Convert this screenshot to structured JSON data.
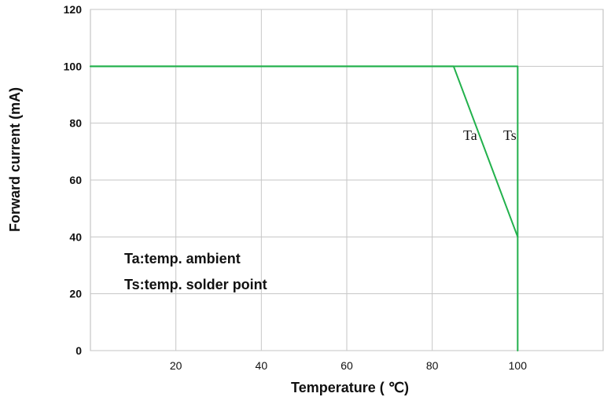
{
  "chart_data": {
    "type": "line",
    "title": "",
    "xlabel": "Temperature ( ℃)",
    "ylabel": "Forward current (mA)",
    "xlim": [
      0,
      120
    ],
    "ylim": [
      0,
      120
    ],
    "x_ticks": [
      20,
      40,
      60,
      80,
      100
    ],
    "y_ticks": [
      0,
      20,
      40,
      60,
      80,
      100,
      120
    ],
    "grid": true,
    "series": [
      {
        "name": "Ta",
        "color": "#22b14c",
        "points": [
          [
            0,
            100
          ],
          [
            85,
            100
          ],
          [
            100,
            40
          ]
        ]
      },
      {
        "name": "Ts",
        "color": "#22b14c",
        "points": [
          [
            0,
            100
          ],
          [
            100,
            100
          ],
          [
            100,
            0
          ]
        ]
      }
    ],
    "legend_notes": [
      "Ta:temp. ambient",
      "Ts:temp. solder point"
    ]
  }
}
